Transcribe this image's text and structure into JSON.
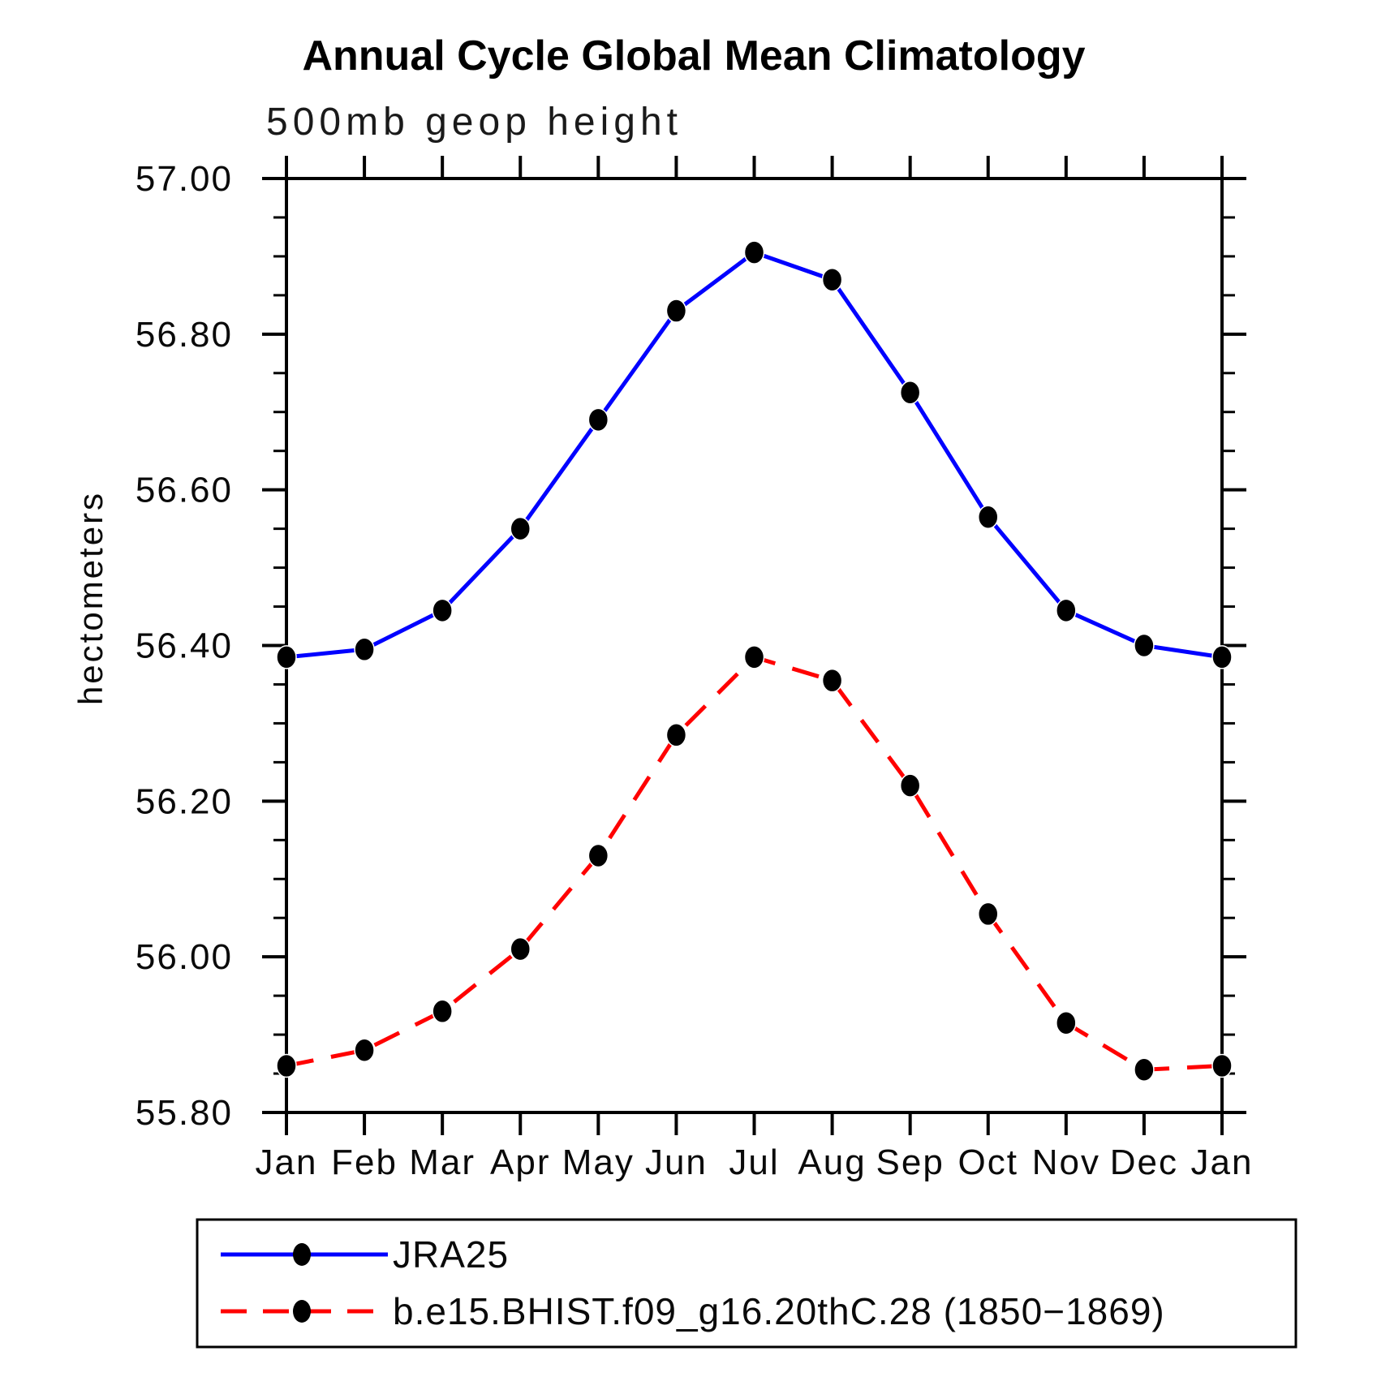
{
  "title": "Annual Cycle Global Mean Climatology",
  "subtitle": "500mb geop height",
  "ylabel": "hectometers",
  "colors": {
    "jra25_line": "#0000ff",
    "model_line": "#ff0000",
    "marker": "#000000",
    "axis": "#000000",
    "background": "#ffffff"
  },
  "legend": {
    "items": [
      {
        "label": "JRA25",
        "color": "#0000ff",
        "style": "solid",
        "marker": "circle"
      },
      {
        "label": "b.e15.BHIST.f09_g16.20thC.28 (1850−1869)",
        "color": "#ff0000",
        "style": "dashed",
        "marker": "circle"
      }
    ]
  },
  "chart_data": {
    "type": "line",
    "title": "Annual Cycle Global Mean Climatology",
    "subtitle": "500mb geop height",
    "ylabel": "hectometers",
    "xlabel": "",
    "categories": [
      "Jan",
      "Feb",
      "Mar",
      "Apr",
      "May",
      "Jun",
      "Jul",
      "Aug",
      "Sep",
      "Oct",
      "Nov",
      "Dec",
      "Jan"
    ],
    "ylim": [
      55.8,
      57.0
    ],
    "ytick_major_step": 0.2,
    "ytick_minor_step": 0.05,
    "ytick_labels": [
      "57.00",
      "56.80",
      "56.60",
      "56.40",
      "56.20",
      "56.00",
      "55.80"
    ],
    "grid": false,
    "legend_position": "bottom-left box",
    "series": [
      {
        "name": "JRA25",
        "color": "#0000ff",
        "style": "solid",
        "marker": "filled-circle",
        "values": [
          56.385,
          56.395,
          56.445,
          56.55,
          56.69,
          56.83,
          56.905,
          56.87,
          56.725,
          56.565,
          56.445,
          56.4,
          56.385
        ]
      },
      {
        "name": "b.e15.BHIST.f09_g16.20thC.28 (1850−1869)",
        "color": "#ff0000",
        "style": "dashed",
        "marker": "filled-circle",
        "values": [
          55.86,
          55.88,
          55.93,
          56.01,
          56.13,
          56.285,
          56.385,
          56.355,
          56.22,
          56.055,
          55.915,
          55.855,
          55.86
        ]
      }
    ]
  }
}
